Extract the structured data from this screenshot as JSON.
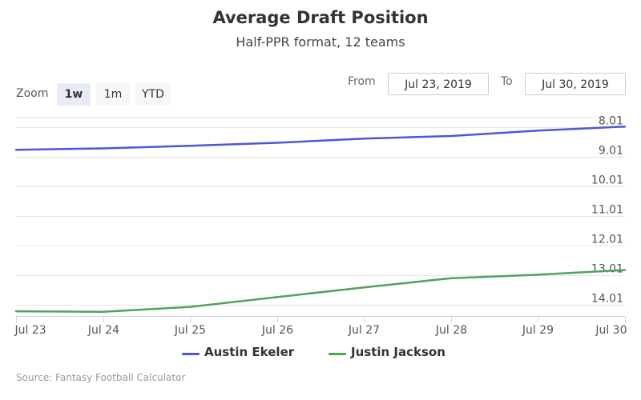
{
  "header": {
    "title": "Average Draft Position",
    "subtitle": "Half-PPR format, 12 teams"
  },
  "zoom": {
    "label": "Zoom",
    "buttons": [
      "1w",
      "1m",
      "YTD"
    ],
    "active": "1w"
  },
  "range": {
    "from_label": "From",
    "from_value": "Jul 23, 2019",
    "to_label": "To",
    "to_value": "Jul 30, 2019"
  },
  "source": "Source: Fantasy Football Calculator",
  "colors": {
    "austin_ekeler": "#4f56d8",
    "justin_jackson": "#4fa35c",
    "grid": "#e6e6e6",
    "axis": "#ccd6eb"
  },
  "chart_data": {
    "type": "line",
    "title": "Average Draft Position",
    "subtitle": "Half-PPR format, 12 teams",
    "x": [
      "Jul 23",
      "Jul 24",
      "Jul 25",
      "Jul 26",
      "Jul 27",
      "Jul 28",
      "Jul 29",
      "Jul 30"
    ],
    "y_ticks": [
      "8.01",
      "9.01",
      "10.01",
      "11.01",
      "12.01",
      "13.01",
      "14.01"
    ],
    "y_reversed": true,
    "ylim": [
      7.65,
      14.4
    ],
    "grid": true,
    "legend_position": "bottom-center",
    "series": [
      {
        "name": "Austin Ekeler",
        "color": "#4f56d8",
        "values": [
          8.77,
          8.72,
          8.63,
          8.53,
          8.39,
          8.3,
          8.12,
          7.98
        ]
      },
      {
        "name": "Justin Jackson",
        "color": "#4fa35c",
        "values": [
          14.24,
          14.26,
          14.09,
          13.76,
          13.43,
          13.12,
          13.0,
          12.84
        ]
      }
    ]
  }
}
